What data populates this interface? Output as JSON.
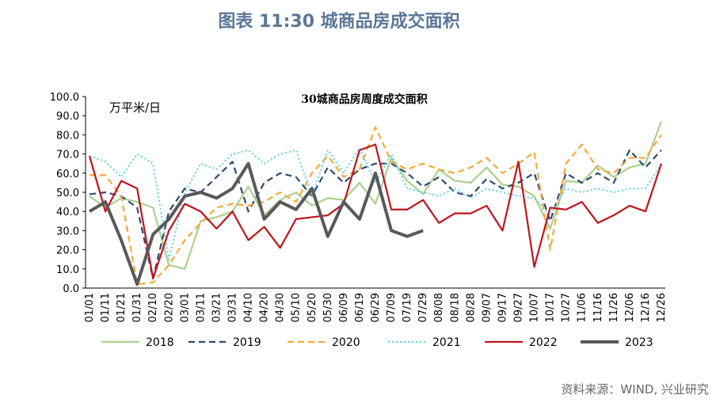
{
  "chart_data": {
    "type": "line",
    "title": "图表 11:30 城商品房成交面积",
    "subtitle": "30城商品房周度成交面积",
    "y_label": "万平米/日",
    "source": "资料来源：WIND, 兴业研究",
    "categories": [
      "01/01",
      "01/11",
      "01/21",
      "01/31",
      "02/10",
      "02/20",
      "03/01",
      "03/11",
      "03/21",
      "03/31",
      "04/10",
      "04/20",
      "04/30",
      "05/10",
      "05/20",
      "05/30",
      "06/09",
      "06/19",
      "06/29",
      "07/09",
      "07/19",
      "07/29",
      "08/08",
      "08/18",
      "08/28",
      "09/07",
      "09/17",
      "09/27",
      "10/07",
      "10/17",
      "10/27",
      "11/06",
      "11/16",
      "11/26",
      "12/06",
      "12/16",
      "12/26"
    ],
    "series": [
      {
        "name": "2018",
        "color": "#a9d18e",
        "dash": "solid",
        "values": [
          48,
          42,
          47,
          45,
          42,
          12,
          10,
          35,
          37,
          40,
          53,
          38,
          46,
          50,
          43,
          47,
          46,
          55,
          44,
          68,
          56,
          49,
          62,
          56,
          55,
          63,
          54,
          53,
          48,
          31,
          56,
          55,
          64,
          58,
          63,
          65,
          87
        ]
      },
      {
        "name": "2019",
        "color": "#2f4a6e",
        "dash": "dashed",
        "values": [
          49,
          50,
          48,
          42,
          5,
          40,
          52,
          50,
          58,
          66,
          40,
          55,
          60,
          58,
          48,
          63,
          55,
          62,
          65,
          65,
          60,
          53,
          58,
          50,
          48,
          57,
          52,
          55,
          60,
          35,
          60,
          55,
          60,
          55,
          72,
          63,
          72
        ]
      },
      {
        "name": "2020",
        "color": "#f5a93c",
        "dash": "dashed",
        "values": [
          59,
          59,
          48,
          2,
          3,
          12,
          25,
          34,
          42,
          44,
          43,
          45,
          50,
          45,
          60,
          69,
          58,
          62,
          84,
          66,
          62,
          65,
          62,
          60,
          63,
          68,
          60,
          65,
          71,
          20,
          65,
          75,
          62,
          60,
          68,
          68,
          80
        ]
      },
      {
        "name": "2021",
        "color": "#5bd1e6",
        "dash": "dotted",
        "values": [
          69,
          66,
          58,
          70,
          65,
          15,
          50,
          65,
          62,
          70,
          72,
          65,
          70,
          72,
          48,
          72,
          60,
          73,
          55,
          70,
          52,
          50,
          48,
          52,
          47,
          52,
          50,
          48,
          47,
          38,
          52,
          50,
          52,
          50,
          52,
          52,
          65
        ]
      },
      {
        "name": "2022",
        "color": "#c0141c",
        "dash": "solid",
        "values": [
          69,
          40,
          56,
          52,
          5,
          30,
          44,
          40,
          31,
          40,
          25,
          32,
          21,
          36,
          37,
          38,
          44,
          72,
          75,
          41,
          41,
          46,
          34,
          39,
          39,
          43,
          30,
          66,
          11,
          42,
          41,
          45,
          34,
          38,
          43,
          40,
          65
        ]
      },
      {
        "name": "2023",
        "color": "#595959",
        "dash": "thick",
        "values": [
          40,
          45,
          25,
          2,
          28,
          36,
          48,
          50,
          47,
          52,
          65,
          36,
          45,
          41,
          52,
          27,
          45,
          36,
          60,
          30,
          27,
          30,
          null,
          null,
          null,
          null,
          null,
          null,
          null,
          null,
          null,
          null,
          null,
          null,
          null,
          null,
          null
        ]
      }
    ],
    "ylim": [
      0,
      100
    ],
    "yticks": [
      {
        "value": 0,
        "label": "0.0"
      },
      {
        "value": 10,
        "label": "10.0"
      },
      {
        "value": 20,
        "label": "20.0"
      },
      {
        "value": 30,
        "label": "30.0"
      },
      {
        "value": 40,
        "label": "40.0"
      },
      {
        "value": 50,
        "label": "50.0"
      },
      {
        "value": 60,
        "label": "60.0"
      },
      {
        "value": 70,
        "label": "70.0"
      },
      {
        "value": 80,
        "label": "80.0"
      },
      {
        "value": 90,
        "label": "90.0"
      },
      {
        "value": 100,
        "label": "100.0"
      }
    ],
    "legend": "bottom"
  }
}
